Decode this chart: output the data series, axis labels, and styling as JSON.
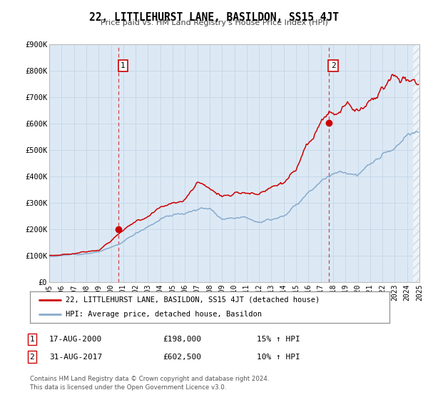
{
  "title": "22, LITTLEHURST LANE, BASILDON, SS15 4JT",
  "subtitle": "Price paid vs. HM Land Registry's House Price Index (HPI)",
  "ylim": [
    0,
    900000
  ],
  "xlim": [
    1995,
    2025
  ],
  "plot_bg_color": "#dce9f5",
  "grid_color": "#c8d8e8",
  "sale1_date": 2000.625,
  "sale1_price": 198000,
  "sale1_label": "1",
  "sale2_date": 2017.667,
  "sale2_price": 602500,
  "sale2_label": "2",
  "legend_line1": "22, LITTLEHURST LANE, BASILDON, SS15 4JT (detached house)",
  "legend_line2": "HPI: Average price, detached house, Basildon",
  "table_row1": [
    "1",
    "17-AUG-2000",
    "£198,000",
    "15% ↑ HPI"
  ],
  "table_row2": [
    "2",
    "31-AUG-2017",
    "£602,500",
    "10% ↑ HPI"
  ],
  "footer1": "Contains HM Land Registry data © Crown copyright and database right 2024.",
  "footer2": "This data is licensed under the Open Government Licence v3.0.",
  "line_color_red": "#cc0000",
  "line_color_blue": "#88aacc",
  "marker_color": "#cc0000",
  "dashed_line_color": "#cc3333",
  "ytick_labels": [
    "£0",
    "£100K",
    "£200K",
    "£300K",
    "£400K",
    "£500K",
    "£600K",
    "£700K",
    "£800K",
    "£900K"
  ],
  "ytick_values": [
    0,
    100000,
    200000,
    300000,
    400000,
    500000,
    600000,
    700000,
    800000,
    900000
  ]
}
